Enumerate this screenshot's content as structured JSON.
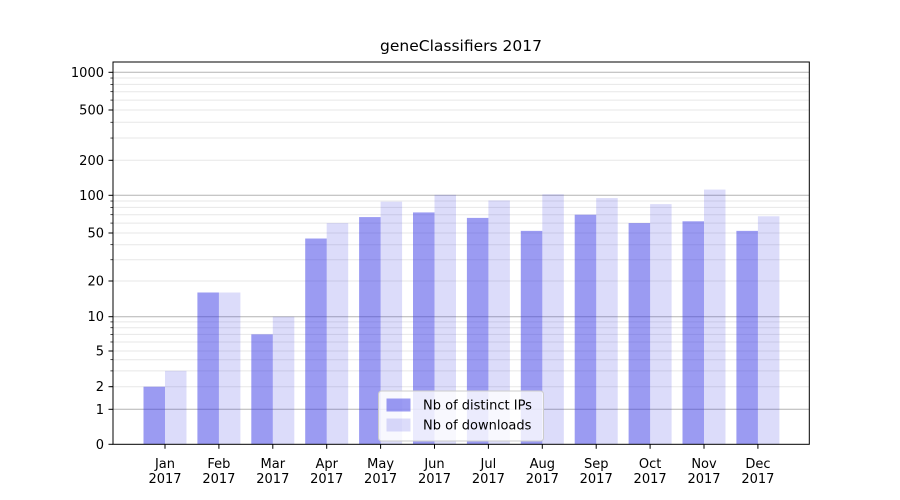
{
  "chart_data": {
    "type": "bar",
    "title": "geneClassifiers 2017",
    "yscale": "log-like (0,1,2,5,10,20,50,100,200,500,1000)",
    "grid": true,
    "legend_position": "lower-center",
    "x_months": [
      "Jan",
      "Feb",
      "Mar",
      "Apr",
      "May",
      "Jun",
      "Jul",
      "Aug",
      "Sep",
      "Oct",
      "Nov",
      "Dec"
    ],
    "x_year": "2017",
    "y_tick_labels": [
      "0",
      "1",
      "2",
      "5",
      "10",
      "20",
      "50",
      "100",
      "200",
      "500",
      "1000"
    ],
    "y_major_grid_values": [
      1,
      10,
      100,
      1000
    ],
    "y_minor_grid_values": [
      2,
      3,
      4,
      5,
      6,
      7,
      8,
      9,
      20,
      30,
      40,
      50,
      60,
      70,
      80,
      90,
      200,
      300,
      400,
      500,
      600,
      700,
      800,
      900
    ],
    "series": [
      {
        "name": "Nb of distinct IPs",
        "fill": "rgba(50,50,228,0.49)",
        "values": [
          2,
          16,
          7,
          45,
          67,
          73,
          66,
          52,
          70,
          60,
          62,
          52
        ]
      },
      {
        "name": "Nb of downloads",
        "fill": "rgba(50,50,228,0.17)",
        "values": [
          3,
          16,
          10,
          60,
          89,
          101,
          91,
          102,
          95,
          85,
          112,
          68
        ]
      }
    ],
    "colors": {
      "major_grid": "#b3b3b3",
      "minor_grid": "#e7e7e7",
      "axis": "#000000",
      "legend_border": "#cccccc",
      "legend_bg": "rgba(255,255,255,0.8)"
    }
  }
}
